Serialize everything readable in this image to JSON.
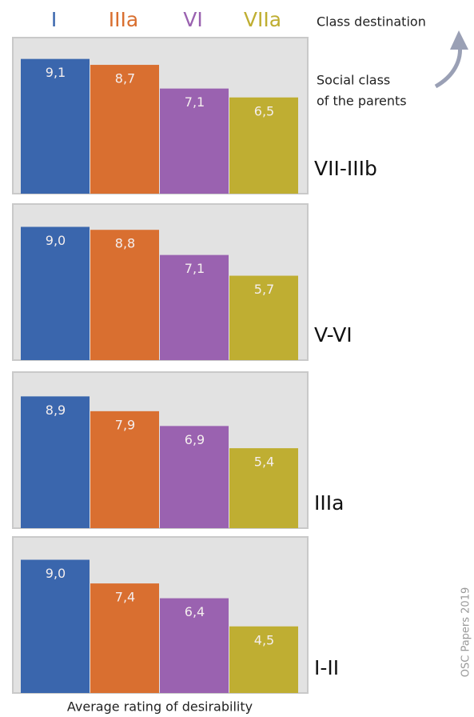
{
  "legend": {
    "labels": [
      "I",
      "IIIa",
      "VI",
      "VIIa"
    ],
    "colors": [
      "#3a66ad",
      "#d96f30",
      "#9a62b0",
      "#bfae32"
    ]
  },
  "annotations": {
    "destination": "Class destination",
    "parents": [
      "Social class",
      "of the parents"
    ]
  },
  "x_label": "Average rating of desirability",
  "source": "OSC Papers 2019",
  "chart_data": [
    {
      "type": "bar",
      "title": "VII-IIIb",
      "values": [
        9.1,
        8.7,
        7.1,
        6.5
      ],
      "value_labels": [
        "9,1",
        "8,7",
        "7,1",
        "6,5"
      ],
      "ylim": [
        0,
        10
      ]
    },
    {
      "type": "bar",
      "title": "V-VI",
      "values": [
        9.0,
        8.8,
        7.1,
        5.7
      ],
      "value_labels": [
        "9,0",
        "8,8",
        "7,1",
        "5,7"
      ],
      "ylim": [
        0,
        10
      ]
    },
    {
      "type": "bar",
      "title": "IIIa",
      "values": [
        8.9,
        7.9,
        6.9,
        5.4
      ],
      "value_labels": [
        "8,9",
        "7,9",
        "6,9",
        "5,4"
      ],
      "ylim": [
        0,
        10
      ]
    },
    {
      "type": "bar",
      "title": "I-II",
      "values": [
        9.0,
        7.4,
        6.4,
        4.5
      ],
      "value_labels": [
        "9,0",
        "7,4",
        "6,4",
        "4,5"
      ],
      "ylim": [
        0,
        10
      ]
    }
  ]
}
